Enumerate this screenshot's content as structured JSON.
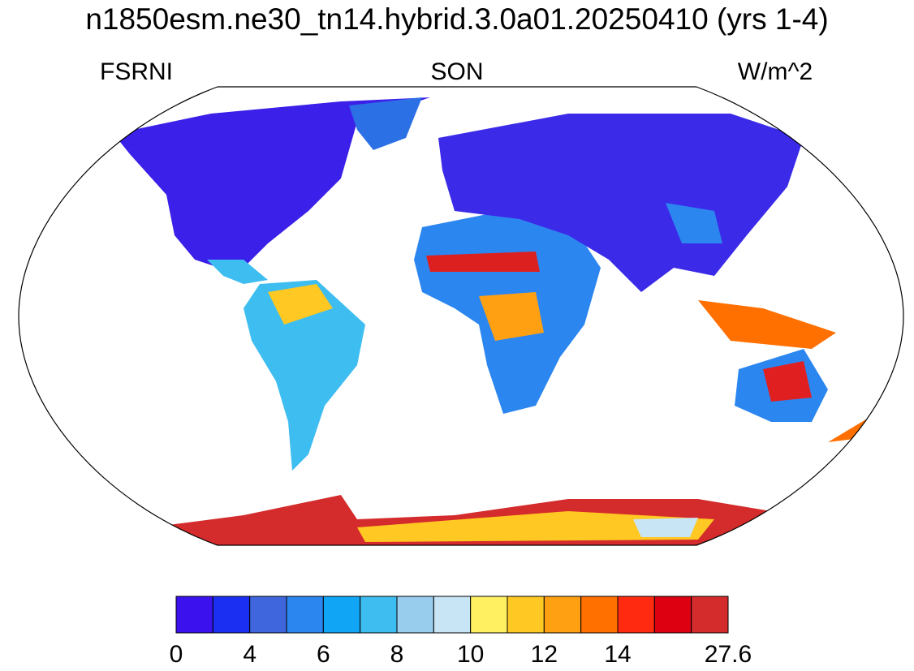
{
  "title": "n1850esm.ne30_tn14.hybrid.3.0a01.20250410 (yrs 1-4)",
  "left_label": "FSRNI",
  "center_label": "SON",
  "right_label": "W/m^2",
  "colorbar": {
    "colors": [
      "#3b12ee",
      "#1a2ff2",
      "#3f66dc",
      "#2c86f0",
      "#10a6f5",
      "#3ebdf0",
      "#98cdee",
      "#c8e5f5",
      "#fff062",
      "#ffc822",
      "#ffa012",
      "#ff7000",
      "#ff2a10",
      "#dc0010",
      "#d42c2c"
    ],
    "boundaries": [
      0,
      null,
      4,
      null,
      6,
      null,
      8,
      null,
      10,
      null,
      12,
      null,
      14,
      null,
      null,
      27.6
    ]
  }
}
